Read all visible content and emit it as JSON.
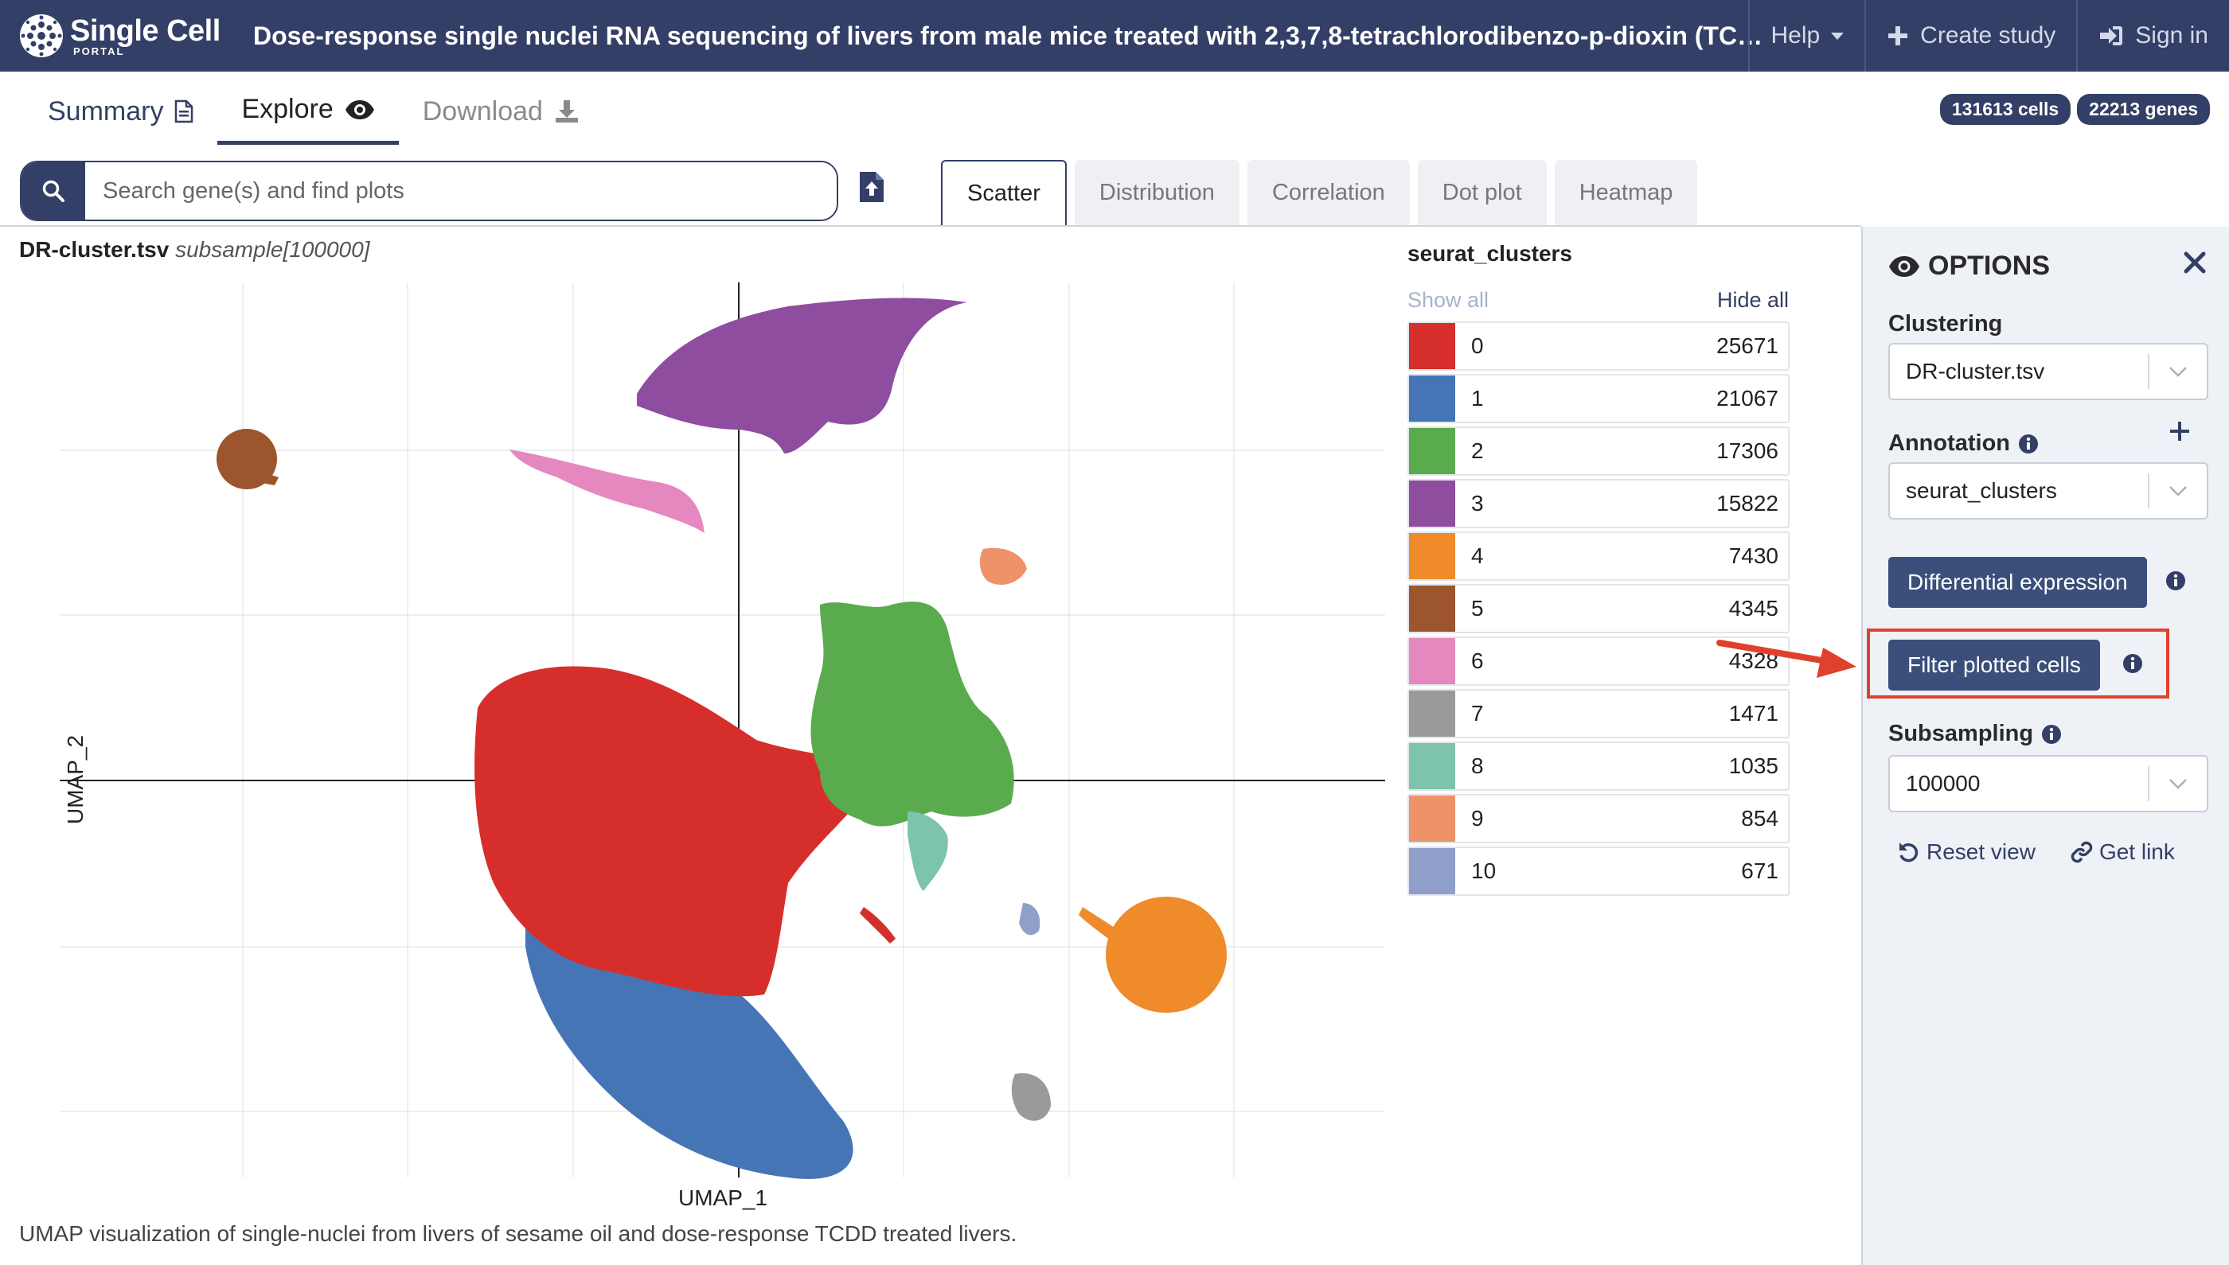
{
  "navbar": {
    "brand_name": "Single Cell",
    "brand_sub": "PORTAL",
    "study_title": "Dose-response single nuclei RNA sequencing of livers from male mice treated with 2,3,7,8-tetrachlorodibenzo-p-dioxin (TCDD)",
    "help_label": "Help",
    "create_label": "Create study",
    "signin_label": "Sign in",
    "bg_color": "#333f66"
  },
  "tabs": {
    "summary": "Summary",
    "explore": "Explore",
    "download": "Download"
  },
  "badges": {
    "cells": "131613 cells",
    "genes": "22213 genes"
  },
  "search": {
    "placeholder": "Search gene(s) and find plots"
  },
  "plot_tabs": [
    "Scatter",
    "Distribution",
    "Correlation",
    "Dot plot",
    "Heatmap"
  ],
  "plot": {
    "file": "DR-cluster.tsv",
    "subsample": "subsample[100000]",
    "xlabel": "UMAP_1",
    "ylabel": "UMAP_2",
    "caption": "UMAP visualization of single-nuclei from livers of sesame oil and dose-response TCDD treated livers."
  },
  "legend": {
    "title": "seurat_clusters",
    "show_all": "Show all",
    "hide_all": "Hide all",
    "items": [
      {
        "label": "0",
        "count": "25671",
        "color": "#d62f2b"
      },
      {
        "label": "1",
        "count": "21067",
        "color": "#4675b5"
      },
      {
        "label": "2",
        "count": "17306",
        "color": "#5aab4e"
      },
      {
        "label": "3",
        "count": "15822",
        "color": "#8f4d9f"
      },
      {
        "label": "4",
        "count": "7430",
        "color": "#f08b2b"
      },
      {
        "label": "5",
        "count": "4345",
        "color": "#9c552c"
      },
      {
        "label": "6",
        "count": "4328",
        "color": "#e688c0"
      },
      {
        "label": "7",
        "count": "1471",
        "color": "#9a9a9a"
      },
      {
        "label": "8",
        "count": "1035",
        "color": "#7dc4ab"
      },
      {
        "label": "9",
        "count": "854",
        "color": "#ee926a"
      },
      {
        "label": "10",
        "count": "671",
        "color": "#8f9fca"
      }
    ]
  },
  "options": {
    "title": "OPTIONS",
    "clustering_label": "Clustering",
    "clustering_value": "DR-cluster.tsv",
    "annotation_label": "Annotation",
    "annotation_value": "seurat_clusters",
    "diff_expr_label": "Differential expression",
    "filter_label": "Filter plotted cells",
    "subsampling_label": "Subsampling",
    "subsampling_value": "100000",
    "reset_label": "Reset view",
    "link_label": "Get link"
  }
}
